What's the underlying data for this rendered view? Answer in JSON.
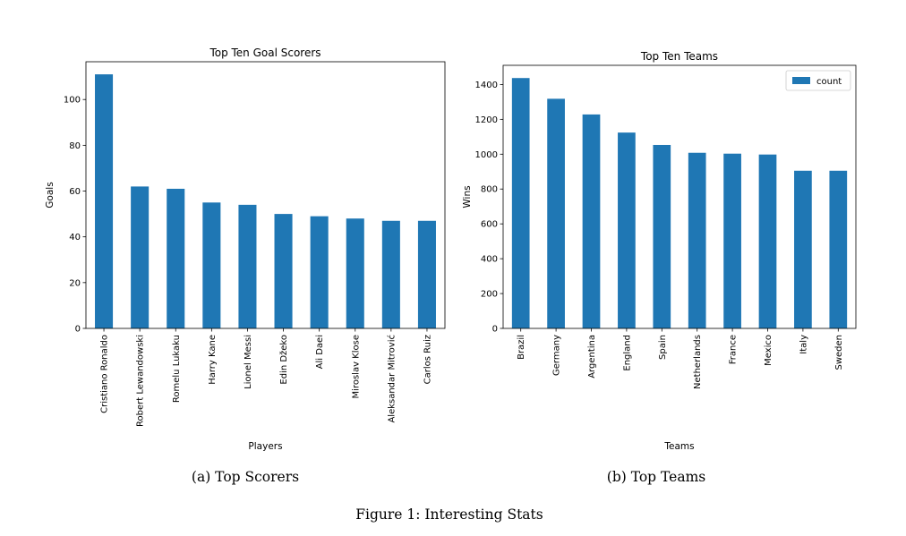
{
  "chart_data": [
    {
      "type": "bar",
      "title": "Top Ten Goal Scorers",
      "xlabel": "Players",
      "ylabel": "Goals",
      "categories": [
        "Cristiano Ronaldo",
        "Robert Lewandowski",
        "Romelu Lukaku",
        "Harry Kane",
        "Lionel Messi",
        "Edin Džeko",
        "Ali Daei",
        "Miroslav Klose",
        "Aleksandar Mitrović",
        "Carlos Ruiz"
      ],
      "values": [
        111,
        62,
        61,
        55,
        54,
        50,
        49,
        48,
        47,
        47
      ],
      "ylim": [
        0,
        116.5
      ],
      "yticks": [
        0,
        20,
        40,
        60,
        80,
        100
      ],
      "color": "#1f77b4",
      "grid": false,
      "legend": null
    },
    {
      "type": "bar",
      "title": "Top Ten Teams",
      "xlabel": "Teams",
      "ylabel": "Wins",
      "categories": [
        "Brazil",
        "Germany",
        "Argentina",
        "England",
        "Spain",
        "Netherlands",
        "France",
        "Mexico",
        "Italy",
        "Sweden"
      ],
      "series": [
        {
          "name": "count",
          "values": [
            1437,
            1318,
            1228,
            1124,
            1053,
            1008,
            1003,
            998,
            905,
            905
          ]
        }
      ],
      "ylim": [
        0,
        1510
      ],
      "yticks": [
        0,
        200,
        400,
        600,
        800,
        1000,
        1200,
        1400
      ],
      "color": "#1f77b4",
      "grid": false,
      "legend": "top-right"
    }
  ],
  "captions": {
    "a": "(a) Top Scorers",
    "b": "(b) Top Teams",
    "figure": "Figure 1: Interesting Stats"
  }
}
